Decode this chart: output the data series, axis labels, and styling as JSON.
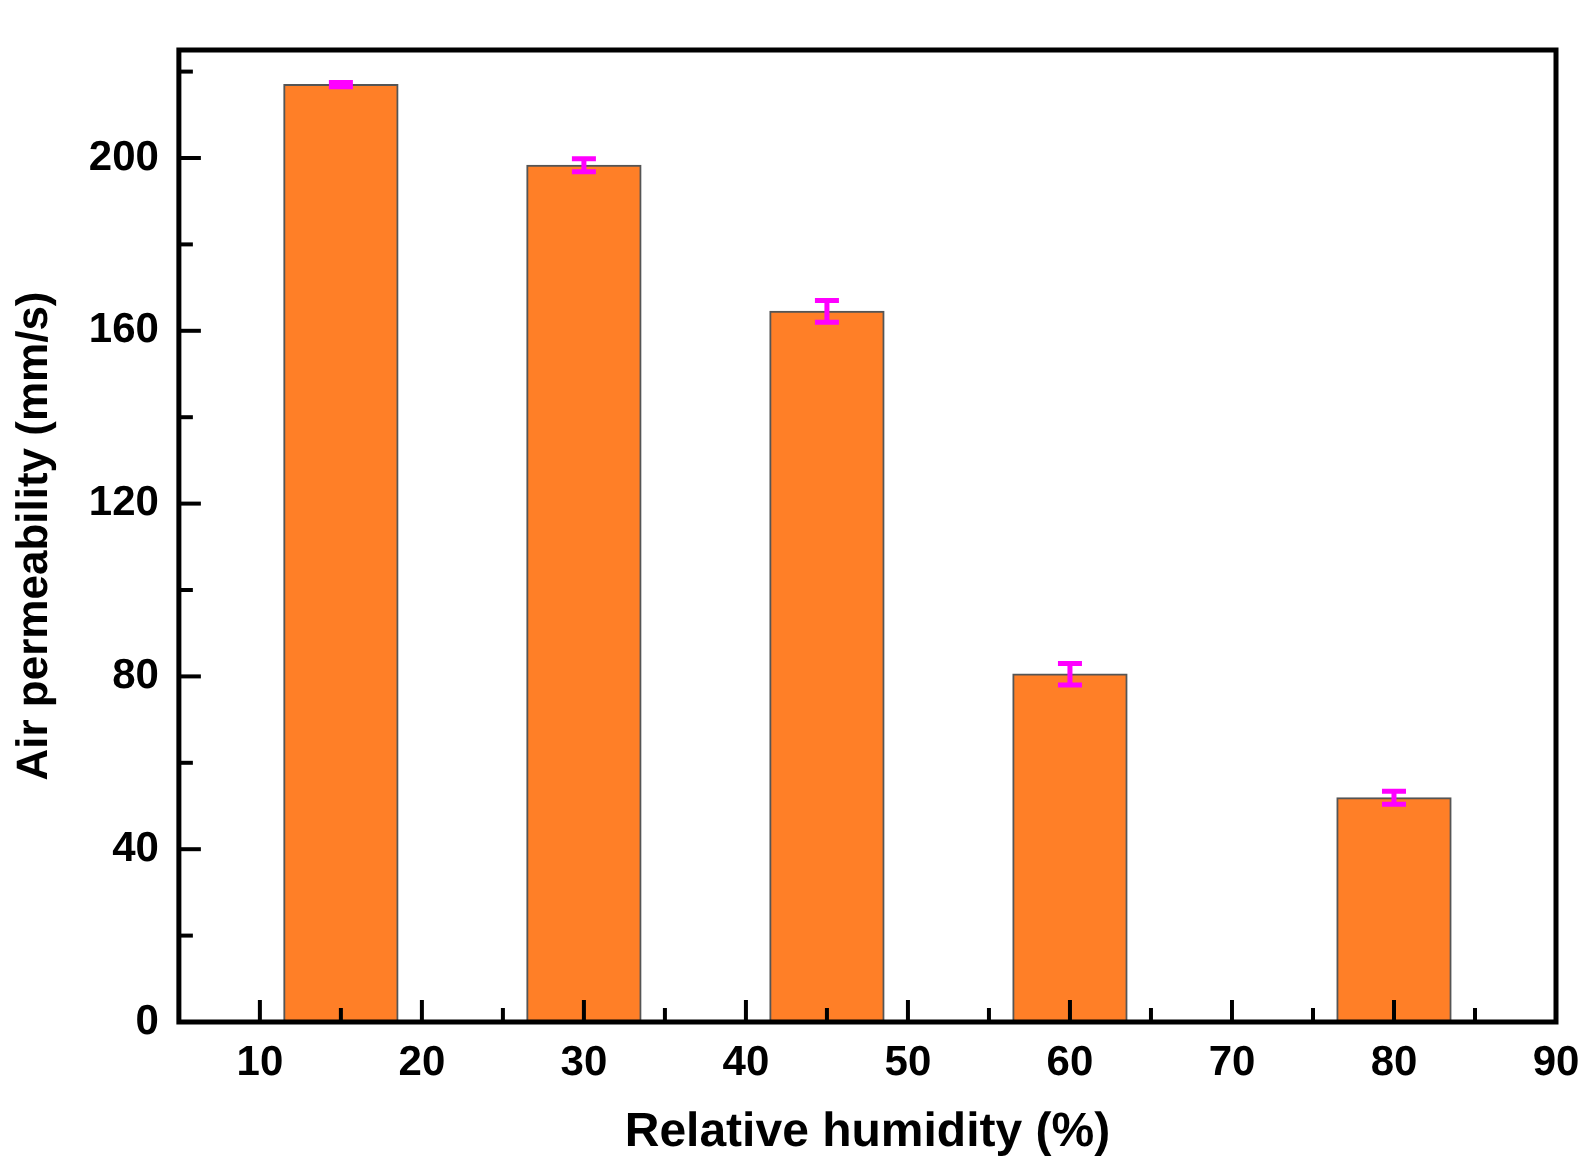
{
  "chart_data": {
    "type": "bar",
    "xlabel": "Relative humidity (%)",
    "ylabel": "Air permeability (mm/s)",
    "x": [
      15,
      30,
      45,
      60,
      80
    ],
    "values": [
      217,
      198.3,
      164.5,
      80.5,
      51.9
    ],
    "errors": [
      0.5,
      1.5,
      2.5,
      2.5,
      1.5
    ],
    "color": "#ff7f27",
    "xlim": [
      5,
      90
    ],
    "xticks": [
      10,
      {
        "value": 15,
        "label": null
      },
      20,
      {
        "value": 25,
        "label": null
      },
      30,
      {
        "value": 35,
        "label": null
      },
      40,
      {
        "value": 45,
        "label": null
      },
      50,
      {
        "value": 55,
        "label": null
      },
      60,
      {
        "value": 65,
        "label": null
      },
      70,
      {
        "value": 75,
        "label": null
      },
      80,
      {
        "value": 85,
        "label": null
      },
      90
    ],
    "ylim": [
      0,
      225
    ],
    "yticks": [
      0,
      {
        "value": 20,
        "label": null
      },
      40,
      {
        "value": 60,
        "label": null
      },
      80,
      {
        "value": 100,
        "label": null
      },
      120,
      {
        "value": 140,
        "label": null
      },
      160,
      {
        "value": 180,
        "label": null
      },
      200,
      {
        "value": 220,
        "label": null
      }
    ],
    "grid": false,
    "legend": false
  }
}
